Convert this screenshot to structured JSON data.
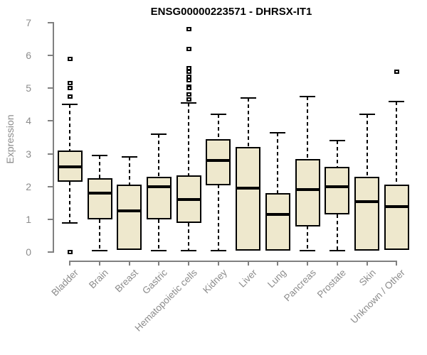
{
  "chart_data": {
    "type": "boxplot",
    "title": "ENSG00000223571 - DHRSX-IT1",
    "ylabel": "Expression",
    "xlabel": "",
    "ylim": [
      0,
      7
    ],
    "yticks": [
      0,
      1,
      2,
      3,
      4,
      5,
      6,
      7
    ],
    "grid": false,
    "legend": null,
    "categories": [
      "Bladder",
      "Brain",
      "Breast",
      "Gastric",
      "Hematopoietic cells",
      "Kidney",
      "Liver",
      "Lung",
      "Pancreas",
      "Prostate",
      "Skin",
      "Unknown / Other"
    ],
    "boxes": [
      {
        "category": "Bladder",
        "whisker_low": 0.9,
        "q1": 2.15,
        "median": 2.6,
        "q3": 3.1,
        "whisker_high": 4.5,
        "outliers": [
          5.9,
          5.15,
          5.0,
          4.75,
          0.0
        ]
      },
      {
        "category": "Brain",
        "whisker_low": 0.05,
        "q1": 1.0,
        "median": 1.8,
        "q3": 2.25,
        "whisker_high": 2.95,
        "outliers": []
      },
      {
        "category": "Breast",
        "whisker_low": null,
        "q1": 0.05,
        "median": 1.25,
        "q3": 2.05,
        "whisker_high": 2.9,
        "outliers": []
      },
      {
        "category": "Gastric",
        "whisker_low": 0.05,
        "q1": 1.0,
        "median": 2.0,
        "q3": 2.3,
        "whisker_high": 3.6,
        "outliers": []
      },
      {
        "category": "Hematopoietic cells",
        "whisker_low": 0.05,
        "q1": 0.9,
        "median": 1.6,
        "q3": 2.35,
        "whisker_high": 4.55,
        "outliers": [
          6.8,
          6.2,
          5.6,
          5.5,
          5.35,
          5.25,
          5.05,
          5.0,
          4.8,
          4.65
        ]
      },
      {
        "category": "Kidney",
        "whisker_low": 0.05,
        "q1": 2.05,
        "median": 2.8,
        "q3": 3.45,
        "whisker_high": 4.2,
        "outliers": []
      },
      {
        "category": "Liver",
        "whisker_low": null,
        "q1": 0.05,
        "median": 1.95,
        "q3": 3.2,
        "whisker_high": 4.7,
        "outliers": []
      },
      {
        "category": "Lung",
        "whisker_low": null,
        "q1": 0.05,
        "median": 1.15,
        "q3": 1.8,
        "whisker_high": 3.65,
        "outliers": []
      },
      {
        "category": "Pancreas",
        "whisker_low": 0.05,
        "q1": 0.8,
        "median": 1.9,
        "q3": 2.85,
        "whisker_high": 4.75,
        "outliers": []
      },
      {
        "category": "Prostate",
        "whisker_low": 0.05,
        "q1": 1.15,
        "median": 2.0,
        "q3": 2.6,
        "whisker_high": 3.4,
        "outliers": []
      },
      {
        "category": "Skin",
        "whisker_low": null,
        "q1": 0.05,
        "median": 1.55,
        "q3": 2.3,
        "whisker_high": 4.2,
        "outliers": []
      },
      {
        "category": "Unknown / Other",
        "whisker_low": null,
        "q1": 0.05,
        "median": 1.4,
        "q3": 2.05,
        "whisker_high": 4.6,
        "outliers": [
          5.5
        ]
      }
    ],
    "colors": {
      "box_fill": "#EEE8CD",
      "box_border": "#000000",
      "median": "#000000",
      "whisker": "#000000",
      "axis": "#808080",
      "axis_text": "#8C8C8C",
      "title": "#000000",
      "background": "#FFFFFF"
    }
  }
}
